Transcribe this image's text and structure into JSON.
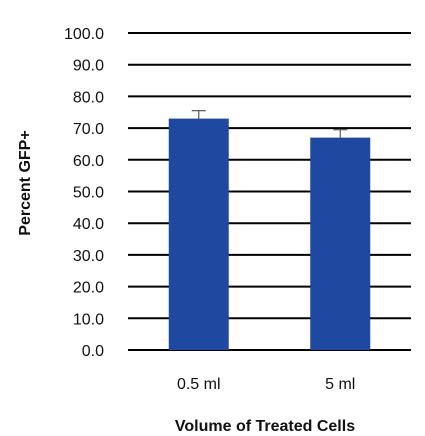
{
  "chart_data": {
    "type": "bar",
    "categories": [
      "0.5 ml",
      "5 ml"
    ],
    "values": [
      73.0,
      67.0
    ],
    "error": [
      2.5,
      2.5
    ],
    "xlabel": "Volume of Treated Cells",
    "ylabel": "Percent GFP+",
    "ylim": [
      0,
      100
    ],
    "yticks": [
      "0.0",
      "10.0",
      "20.0",
      "30.0",
      "40.0",
      "50.0",
      "60.0",
      "70.0",
      "80.0",
      "90.0",
      "100.0"
    ],
    "grid": true,
    "legend": "none",
    "colors": {
      "bar": "#1F48A0",
      "grid": "#000000",
      "errorbar": "#555555"
    }
  }
}
